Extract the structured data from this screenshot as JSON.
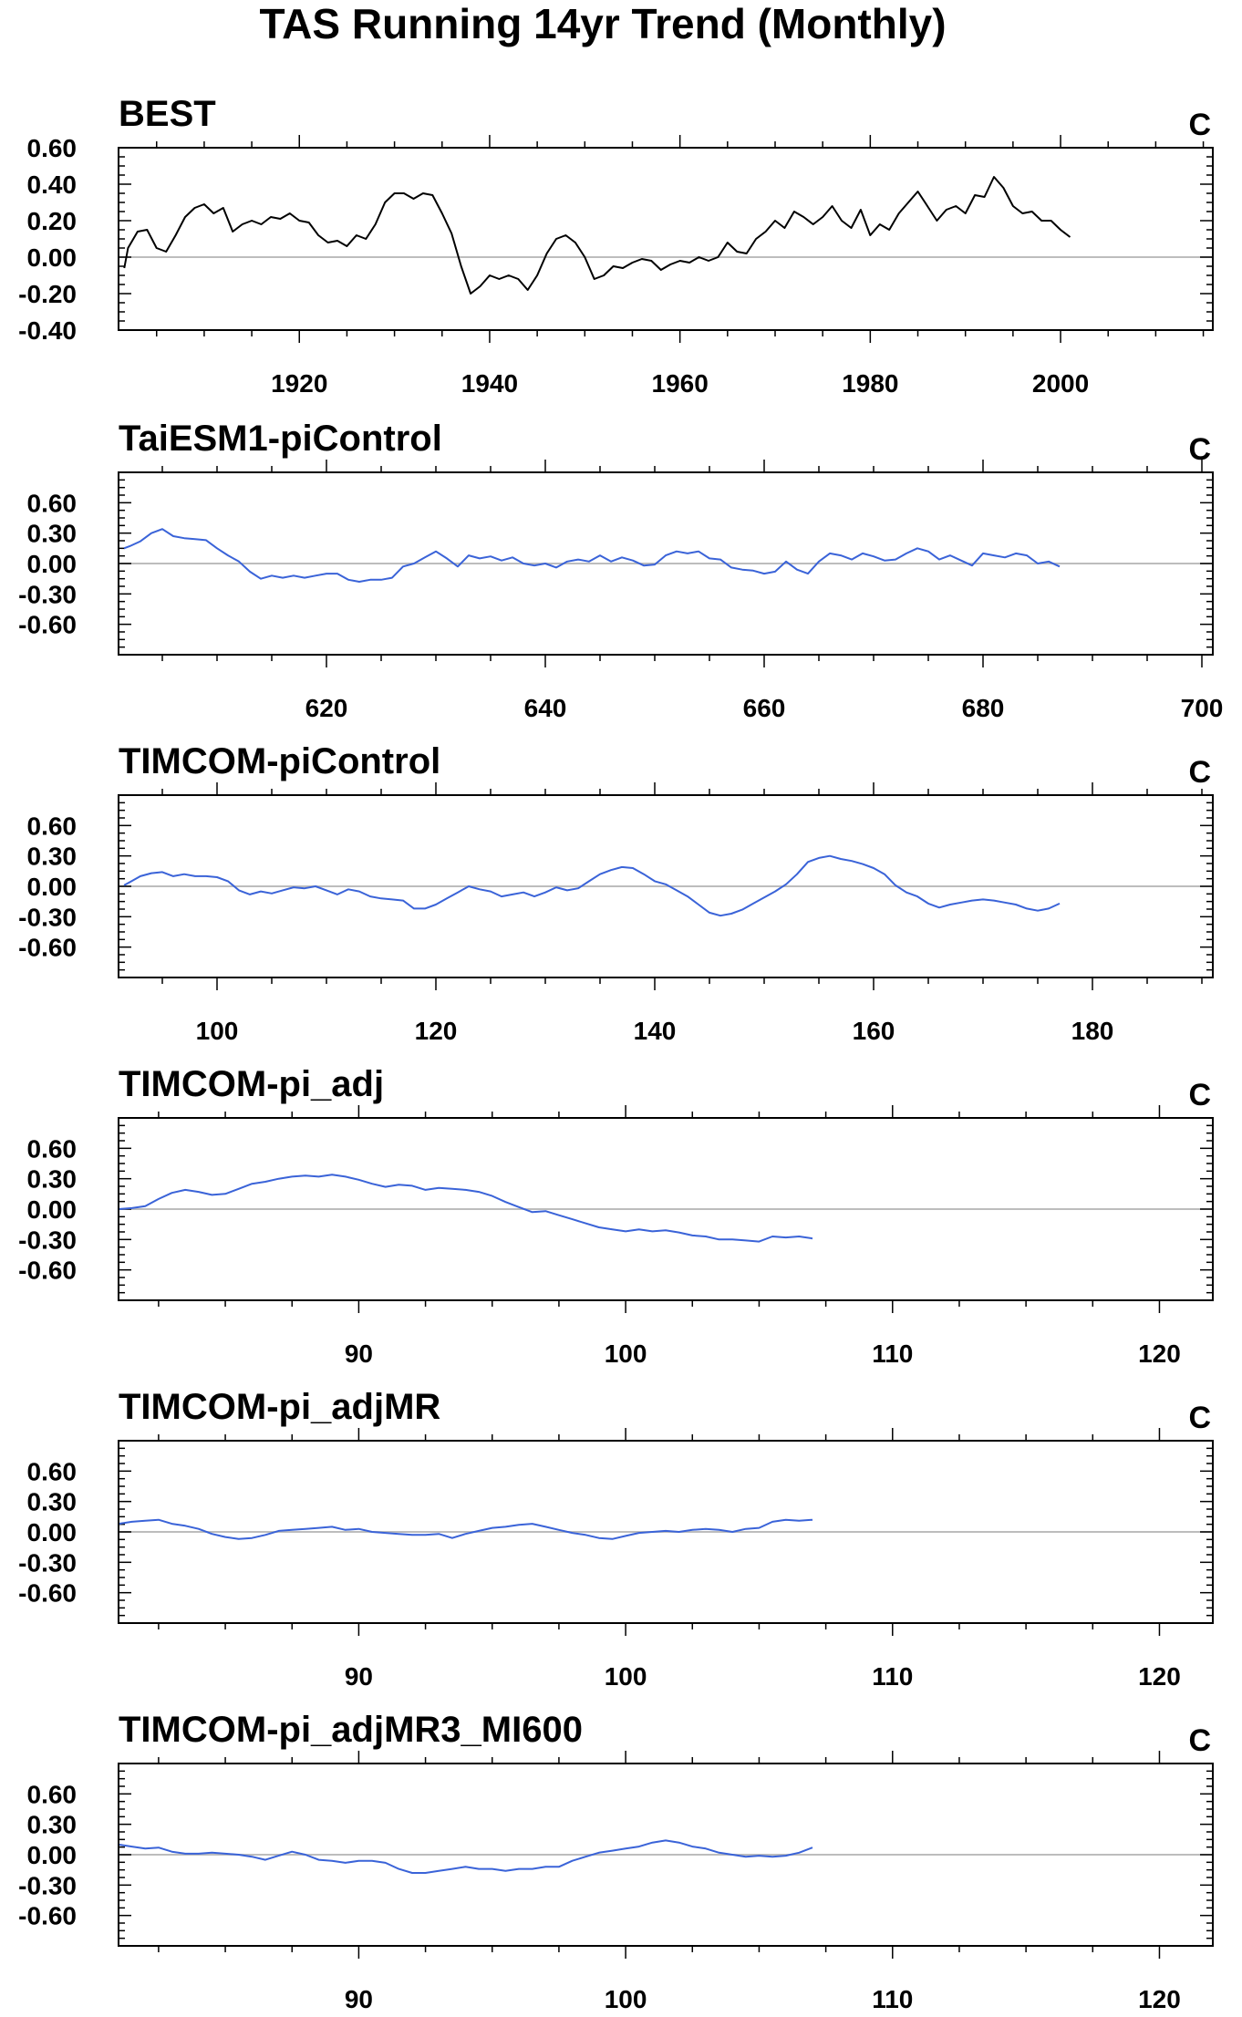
{
  "figure_title": "TAS Running 14yr Trend (Monthly)",
  "chart_data": [
    {
      "type": "line",
      "title": "BEST",
      "units": "C",
      "line_color": "#000000",
      "xlim": [
        1901,
        2016
      ],
      "ylim": [
        -0.4,
        0.6
      ],
      "xticks": [
        1920,
        1940,
        1960,
        1980,
        2000
      ],
      "xtick_labels": [
        "1920",
        "1940",
        "1960",
        "1980",
        "2000"
      ],
      "yticks": [
        -0.4,
        -0.2,
        0.0,
        0.2,
        0.4,
        0.6
      ],
      "ytick_labels": [
        "-0.40",
        "-0.20",
        "0.00",
        "0.20",
        "0.40",
        "0.60"
      ],
      "zero_line": true,
      "series": [
        {
          "x": [
            1901.6,
            1902,
            1903,
            1904,
            1905,
            1906,
            1907,
            1908,
            1909,
            1910,
            1911,
            1912,
            1913,
            1914,
            1915,
            1916,
            1917,
            1918,
            1919,
            1920,
            1921,
            1922,
            1923,
            1924,
            1925,
            1926,
            1927,
            1928,
            1929,
            1930,
            1931,
            1932,
            1933,
            1934,
            1935,
            1936,
            1937,
            1938,
            1939,
            1940,
            1941,
            1942,
            1943,
            1944,
            1945,
            1946,
            1947,
            1948,
            1949,
            1950,
            1951,
            1952,
            1953,
            1954,
            1955,
            1956,
            1957,
            1958,
            1959,
            1960,
            1961,
            1962,
            1963,
            1964,
            1965,
            1966,
            1967,
            1968,
            1969,
            1970,
            1971,
            1972,
            1973,
            1974,
            1975,
            1976,
            1977,
            1978,
            1979,
            1980,
            1981,
            1982,
            1983,
            1984,
            1985,
            1986,
            1987,
            1988,
            1989,
            1990,
            1991,
            1992,
            1993,
            1994,
            1995,
            1996,
            1997,
            1998,
            1999,
            2000,
            2001
          ],
          "y": [
            -0.06,
            0.05,
            0.14,
            0.15,
            0.05,
            0.03,
            0.12,
            0.22,
            0.27,
            0.29,
            0.24,
            0.27,
            0.14,
            0.18,
            0.2,
            0.18,
            0.22,
            0.21,
            0.24,
            0.2,
            0.19,
            0.12,
            0.08,
            0.09,
            0.06,
            0.12,
            0.1,
            0.18,
            0.3,
            0.35,
            0.35,
            0.32,
            0.35,
            0.34,
            0.24,
            0.13,
            -0.05,
            -0.2,
            -0.16,
            -0.1,
            -0.12,
            -0.1,
            -0.12,
            -0.18,
            -0.1,
            0.02,
            0.1,
            0.12,
            0.08,
            0.0,
            -0.12,
            -0.1,
            -0.05,
            -0.06,
            -0.03,
            -0.01,
            -0.02,
            -0.07,
            -0.04,
            -0.02,
            -0.03,
            0.0,
            -0.02,
            0.0,
            0.08,
            0.03,
            0.02,
            0.1,
            0.14,
            0.2,
            0.16,
            0.25,
            0.22,
            0.18,
            0.22,
            0.28,
            0.2,
            0.16,
            0.26,
            0.12,
            0.18,
            0.15,
            0.24,
            0.3,
            0.36,
            0.28,
            0.2,
            0.26,
            0.28,
            0.24,
            0.34,
            0.33,
            0.44,
            0.38,
            0.28,
            0.24,
            0.25,
            0.2,
            0.2,
            0.15,
            0.11
          ]
        }
      ]
    },
    {
      "type": "line",
      "title": "TaiESM1-piControl",
      "units": "C",
      "line_color": "#3a63d8",
      "xlim": [
        601,
        701
      ],
      "ylim": [
        -0.9,
        0.9
      ],
      "xticks": [
        620,
        640,
        660,
        680,
        700
      ],
      "xtick_labels": [
        "620",
        "640",
        "660",
        "680",
        "700"
      ],
      "yticks": [
        -0.6,
        -0.3,
        0.0,
        0.3,
        0.6
      ],
      "ytick_labels": [
        "-0.60",
        "-0.30",
        "0.00",
        "0.30",
        "0.60"
      ],
      "zero_line": true,
      "series": [
        {
          "x": [
            601.5,
            602,
            603,
            604,
            605,
            606,
            607,
            608,
            609,
            610,
            611,
            612,
            613,
            614,
            615,
            616,
            617,
            618,
            619,
            620,
            621,
            622,
            623,
            624,
            625,
            626,
            627,
            628,
            629,
            630,
            631,
            632,
            633,
            634,
            635,
            636,
            637,
            638,
            639,
            640,
            641,
            642,
            643,
            644,
            645,
            646,
            647,
            648,
            649,
            650,
            651,
            652,
            653,
            654,
            655,
            656,
            657,
            658,
            659,
            660,
            661,
            662,
            663,
            664,
            665,
            666,
            667,
            668,
            669,
            670,
            671,
            672,
            673,
            674,
            675,
            676,
            677,
            678,
            679,
            680,
            681,
            682,
            683,
            684,
            685,
            686,
            687
          ],
          "y": [
            0.15,
            0.17,
            0.22,
            0.3,
            0.34,
            0.27,
            0.25,
            0.24,
            0.23,
            0.15,
            0.08,
            0.02,
            -0.08,
            -0.15,
            -0.12,
            -0.14,
            -0.12,
            -0.14,
            -0.12,
            -0.1,
            -0.1,
            -0.16,
            -0.18,
            -0.16,
            -0.16,
            -0.14,
            -0.03,
            0.0,
            0.06,
            0.12,
            0.05,
            -0.03,
            0.08,
            0.05,
            0.07,
            0.03,
            0.06,
            0.0,
            -0.02,
            0.0,
            -0.04,
            0.02,
            0.04,
            0.02,
            0.08,
            0.02,
            0.06,
            0.03,
            -0.02,
            -0.01,
            0.08,
            0.12,
            0.1,
            0.12,
            0.05,
            0.04,
            -0.04,
            -0.06,
            -0.07,
            -0.1,
            -0.08,
            0.02,
            -0.06,
            -0.1,
            0.02,
            0.1,
            0.08,
            0.04,
            0.1,
            0.07,
            0.03,
            0.04,
            0.1,
            0.15,
            0.12,
            0.04,
            0.08,
            0.03,
            -0.02,
            0.1,
            0.08,
            0.06,
            0.1,
            0.08,
            0.0,
            0.02,
            -0.03
          ]
        }
      ]
    },
    {
      "type": "line",
      "title": "TIMCOM-piControl",
      "units": "C",
      "line_color": "#3a63d8",
      "xlim": [
        91,
        191
      ],
      "ylim": [
        -0.9,
        0.9
      ],
      "xticks": [
        100,
        120,
        140,
        160,
        180
      ],
      "xtick_labels": [
        "100",
        "120",
        "140",
        "160",
        "180"
      ],
      "yticks": [
        -0.6,
        -0.3,
        0.0,
        0.3,
        0.6
      ],
      "ytick_labels": [
        "-0.60",
        "-0.30",
        "0.00",
        "0.30",
        "0.60"
      ],
      "zero_line": true,
      "series": [
        {
          "x": [
            91.5,
            92,
            93,
            94,
            95,
            96,
            97,
            98,
            99,
            100,
            101,
            102,
            103,
            104,
            105,
            106,
            107,
            108,
            109,
            110,
            111,
            112,
            113,
            114,
            115,
            116,
            117,
            118,
            119,
            120,
            121,
            122,
            123,
            124,
            125,
            126,
            127,
            128,
            129,
            130,
            131,
            132,
            133,
            134,
            135,
            136,
            137,
            138,
            139,
            140,
            141,
            142,
            143,
            144,
            145,
            146,
            147,
            148,
            149,
            150,
            151,
            152,
            153,
            154,
            155,
            156,
            157,
            158,
            159,
            160,
            161,
            162,
            163,
            164,
            165,
            166,
            167,
            168,
            169,
            170,
            171,
            172,
            173,
            174,
            175,
            176,
            177
          ],
          "y": [
            0.01,
            0.04,
            0.1,
            0.13,
            0.14,
            0.1,
            0.12,
            0.1,
            0.1,
            0.09,
            0.05,
            -0.04,
            -0.08,
            -0.05,
            -0.07,
            -0.04,
            -0.01,
            -0.02,
            0.0,
            -0.04,
            -0.08,
            -0.03,
            -0.05,
            -0.1,
            -0.12,
            -0.13,
            -0.14,
            -0.22,
            -0.22,
            -0.18,
            -0.12,
            -0.06,
            0.0,
            -0.03,
            -0.05,
            -0.1,
            -0.08,
            -0.06,
            -0.1,
            -0.06,
            -0.01,
            -0.04,
            -0.02,
            0.05,
            0.12,
            0.16,
            0.19,
            0.18,
            0.12,
            0.05,
            0.02,
            -0.04,
            -0.1,
            -0.18,
            -0.26,
            -0.29,
            -0.27,
            -0.23,
            -0.17,
            -0.11,
            -0.05,
            0.02,
            0.12,
            0.24,
            0.28,
            0.3,
            0.27,
            0.25,
            0.22,
            0.18,
            0.12,
            0.01,
            -0.06,
            -0.1,
            -0.17,
            -0.21,
            -0.18,
            -0.16,
            -0.14,
            -0.13,
            -0.14,
            -0.16,
            -0.18,
            -0.22,
            -0.24,
            -0.22,
            -0.17
          ]
        }
      ]
    },
    {
      "type": "line",
      "title": "TIMCOM-pi_adj",
      "units": "C",
      "line_color": "#3a63d8",
      "xlim": [
        81,
        122
      ],
      "ylim": [
        -0.9,
        0.9
      ],
      "xticks": [
        90,
        100,
        110,
        120
      ],
      "xtick_labels": [
        "90",
        "100",
        "110",
        "120"
      ],
      "yticks": [
        -0.6,
        -0.3,
        0.0,
        0.3,
        0.6
      ],
      "ytick_labels": [
        "-0.60",
        "-0.30",
        "0.00",
        "0.30",
        "0.60"
      ],
      "zero_line": true,
      "series": [
        {
          "x": [
            81,
            81.5,
            82,
            82.5,
            83,
            83.5,
            84,
            84.5,
            85,
            85.5,
            86,
            86.5,
            87,
            87.5,
            88,
            88.5,
            89,
            89.5,
            90,
            90.5,
            91,
            91.5,
            92,
            92.5,
            93,
            93.5,
            94,
            94.5,
            95,
            95.5,
            96,
            96.5,
            97,
            97.5,
            98,
            98.5,
            99,
            99.5,
            100,
            100.5,
            101,
            101.5,
            102,
            102.5,
            103,
            103.5,
            104,
            104.5,
            105,
            105.5,
            106,
            106.5,
            107
          ],
          "y": [
            0.0,
            0.01,
            0.03,
            0.1,
            0.16,
            0.19,
            0.17,
            0.14,
            0.15,
            0.2,
            0.25,
            0.27,
            0.3,
            0.32,
            0.33,
            0.32,
            0.34,
            0.32,
            0.29,
            0.25,
            0.22,
            0.24,
            0.23,
            0.19,
            0.21,
            0.2,
            0.19,
            0.17,
            0.13,
            0.07,
            0.02,
            -0.03,
            -0.02,
            -0.06,
            -0.1,
            -0.14,
            -0.18,
            -0.2,
            -0.22,
            -0.2,
            -0.22,
            -0.21,
            -0.23,
            -0.26,
            -0.27,
            -0.3,
            -0.3,
            -0.31,
            -0.32,
            -0.27,
            -0.28,
            -0.27,
            -0.29
          ]
        }
      ]
    },
    {
      "type": "line",
      "title": "TIMCOM-pi_adjMR",
      "units": "C",
      "line_color": "#3a63d8",
      "xlim": [
        81,
        122
      ],
      "ylim": [
        -0.9,
        0.9
      ],
      "xticks": [
        90,
        100,
        110,
        120
      ],
      "xtick_labels": [
        "90",
        "100",
        "110",
        "120"
      ],
      "yticks": [
        -0.6,
        -0.3,
        0.0,
        0.3,
        0.6
      ],
      "ytick_labels": [
        "-0.60",
        "-0.30",
        "0.00",
        "0.30",
        "0.60"
      ],
      "zero_line": true,
      "series": [
        {
          "x": [
            81,
            81.5,
            82,
            82.5,
            83,
            83.5,
            84,
            84.5,
            85,
            85.5,
            86,
            86.5,
            87,
            87.5,
            88,
            88.5,
            89,
            89.5,
            90,
            90.5,
            91,
            91.5,
            92,
            92.5,
            93,
            93.5,
            94,
            94.5,
            95,
            95.5,
            96,
            96.5,
            97,
            97.5,
            98,
            98.5,
            99,
            99.5,
            100,
            100.5,
            101,
            101.5,
            102,
            102.5,
            103,
            103.5,
            104,
            104.5,
            105,
            105.5,
            106,
            106.5,
            107
          ],
          "y": [
            0.08,
            0.1,
            0.11,
            0.12,
            0.08,
            0.06,
            0.03,
            -0.02,
            -0.05,
            -0.07,
            -0.06,
            -0.03,
            0.01,
            0.02,
            0.03,
            0.04,
            0.05,
            0.02,
            0.03,
            0.0,
            -0.01,
            -0.02,
            -0.03,
            -0.03,
            -0.02,
            -0.06,
            -0.02,
            0.01,
            0.04,
            0.05,
            0.07,
            0.08,
            0.05,
            0.02,
            -0.01,
            -0.03,
            -0.06,
            -0.07,
            -0.04,
            -0.01,
            0.0,
            0.01,
            0.0,
            0.02,
            0.03,
            0.02,
            0.0,
            0.03,
            0.04,
            0.1,
            0.12,
            0.11,
            0.12
          ]
        }
      ]
    },
    {
      "type": "line",
      "title": "TIMCOM-pi_adjMR3_MI600",
      "units": "C",
      "line_color": "#3a63d8",
      "xlim": [
        81,
        122
      ],
      "ylim": [
        -0.9,
        0.9
      ],
      "xticks": [
        90,
        100,
        110,
        120
      ],
      "xtick_labels": [
        "90",
        "100",
        "110",
        "120"
      ],
      "yticks": [
        -0.6,
        -0.3,
        0.0,
        0.3,
        0.6
      ],
      "ytick_labels": [
        "-0.60",
        "-0.30",
        "0.00",
        "0.30",
        "0.60"
      ],
      "zero_line": true,
      "series": [
        {
          "x": [
            81,
            81.5,
            82,
            82.5,
            83,
            83.5,
            84,
            84.5,
            85,
            85.5,
            86,
            86.5,
            87,
            87.5,
            88,
            88.5,
            89,
            89.5,
            90,
            90.5,
            91,
            91.5,
            92,
            92.5,
            93,
            93.5,
            94,
            94.5,
            95,
            95.5,
            96,
            96.5,
            97,
            97.5,
            98,
            98.5,
            99,
            99.5,
            100,
            100.5,
            101,
            101.5,
            102,
            102.5,
            103,
            103.5,
            104,
            104.5,
            105,
            105.5,
            106,
            106.5,
            107
          ],
          "y": [
            0.1,
            0.08,
            0.06,
            0.07,
            0.03,
            0.01,
            0.01,
            0.02,
            0.01,
            0.0,
            -0.02,
            -0.05,
            -0.01,
            0.03,
            0.0,
            -0.05,
            -0.06,
            -0.08,
            -0.06,
            -0.06,
            -0.08,
            -0.14,
            -0.18,
            -0.18,
            -0.16,
            -0.14,
            -0.12,
            -0.14,
            -0.14,
            -0.16,
            -0.14,
            -0.14,
            -0.12,
            -0.12,
            -0.06,
            -0.02,
            0.02,
            0.04,
            0.06,
            0.08,
            0.12,
            0.14,
            0.12,
            0.08,
            0.06,
            0.02,
            0.0,
            -0.02,
            -0.01,
            -0.02,
            -0.01,
            0.02,
            0.07
          ]
        }
      ]
    }
  ]
}
